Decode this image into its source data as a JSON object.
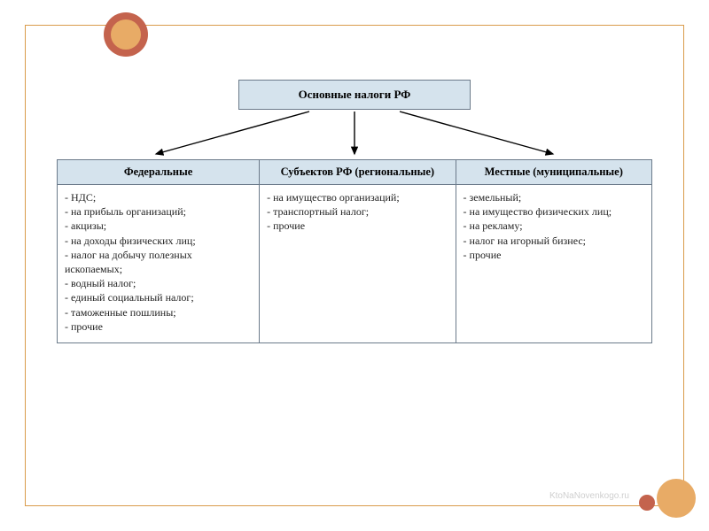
{
  "diagram": {
    "type": "tree",
    "root_label": "Основные налоги РФ",
    "root_bg": "#d5e3ed",
    "root_border": "#6b7a8a",
    "arrow_color": "#000000",
    "header_bg": "#d5e3ed",
    "cell_border": "#6b7a8a",
    "columns": [
      {
        "header": "Федеральные",
        "items": [
          "- НДС;",
          "- на прибыль организаций;",
          "- акцизы;",
          "- на доходы физических лиц;",
          "- налог на добычу полезных ископаемых;",
          "- водный налог;",
          "- единый социальный налог;",
          "- таможенные пошлины;",
          "- прочие"
        ]
      },
      {
        "header": "Субъектов РФ (региональные)",
        "items": [
          "- на имущество организаций;",
          "-  транспортный налог;",
          "-  прочие"
        ]
      },
      {
        "header": "Местные (муниципальные)",
        "items": [
          "- земельный;",
          "- на имущество физических лиц;",
          "- на рекламу;",
          "- налог на игорный бизнес;",
          "- прочие"
        ]
      }
    ],
    "column_widths_pct": [
      34,
      33,
      33
    ],
    "font_family": "Georgia",
    "title_fontsize_pt": 13,
    "header_fontsize_pt": 12.5,
    "body_fontsize_pt": 12,
    "frame_border_color": "#d99b4a",
    "deco_colors": {
      "dark": "#c4634d",
      "light": "#e8ab66"
    }
  },
  "watermark": "KtoNaNovenkogo.ru"
}
